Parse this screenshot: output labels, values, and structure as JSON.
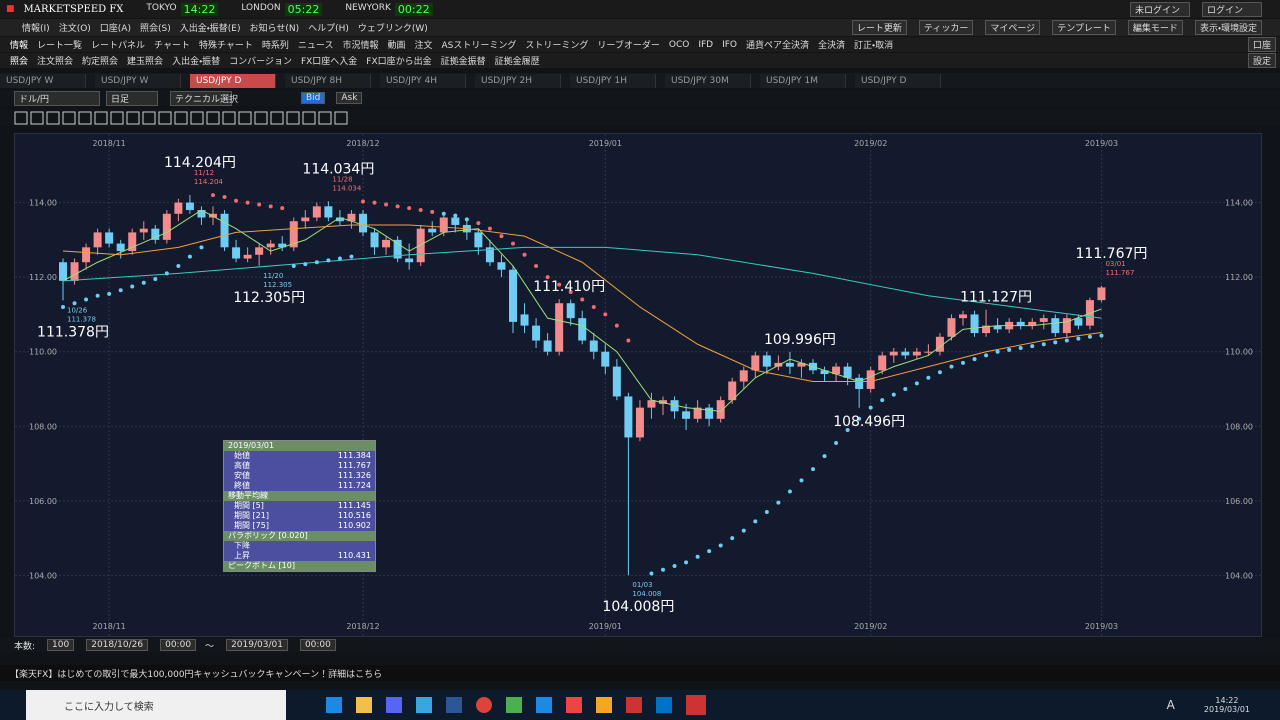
{
  "app": {
    "title": "MARKETSPEED FX",
    "clocks": [
      {
        "city": "TOKYO",
        "time": "14:22"
      },
      {
        "city": "LONDON",
        "time": "05:22"
      },
      {
        "city": "NEWYORK",
        "time": "00:22"
      }
    ],
    "login": [
      "未ログイン",
      "ログイン"
    ]
  },
  "menu": [
    "情報(I)",
    "注文(O)",
    "口座(A)",
    "照会(S)",
    "入出金・振替(E)",
    "お知らせ(N)",
    "ヘルプ(H)",
    "ウェブリンク(W)"
  ],
  "menu_right": [
    "レート更新",
    "ティッカー",
    "マイページ",
    "テンプレート",
    "編集モード",
    "表示・環境設定"
  ],
  "toolbar1": {
    "group": "情報",
    "items": [
      "レート一覧",
      "レートパネル",
      "チャート",
      "特殊チャート",
      "時系列",
      "ニュース",
      "市況情報",
      "動画",
      "注文",
      "ASストリーミング",
      "ストリーミング",
      "リーブオーダー",
      "OCO",
      "IFD",
      "IFO",
      "通貨ペア全決済",
      "全決済",
      "訂正・取消"
    ],
    "right": "口座"
  },
  "toolbar2": {
    "group": "照会",
    "items": [
      "注文照会",
      "約定照会",
      "建玉照会",
      "入出金・振替",
      "コンバージョン",
      "FX口座へ入金",
      "FX口座から出金",
      "証拠金振替",
      "証拠金履歴"
    ],
    "right": "設定"
  },
  "tabs": [
    "USD/JPY W",
    "USD/JPY W",
    "USD/JPY D",
    "USD/JPY 8H",
    "USD/JPY 4H",
    "USD/JPY 2H",
    "USD/JPY 1H",
    "USD/JPY 30M",
    "USD/JPY 1M",
    "USD/JPY D"
  ],
  "active_tab": 2,
  "chart_toolbar": {
    "pair": "ドル/円",
    "period": "日足",
    "technical": "テクニカル選択",
    "bid": "Bid",
    "ask": "Ask"
  },
  "chart_data": {
    "type": "candlestick",
    "xlim": [
      -4.16,
      104
    ],
    "ylim": [
      102.32,
      115.84
    ],
    "xticks": [
      {
        "value": 4,
        "label": "2018/11"
      },
      {
        "value": 26,
        "label": "2018/12"
      },
      {
        "value": 47,
        "label": "2019/01"
      },
      {
        "value": 70,
        "label": "2019/02"
      },
      {
        "value": 90,
        "label": "2019/03"
      }
    ],
    "yticks": [
      {
        "value": 104,
        "label": "104.00"
      },
      {
        "value": 106,
        "label": "106.00"
      },
      {
        "value": 108,
        "label": "108.00"
      },
      {
        "value": 110,
        "label": "110.00"
      },
      {
        "value": 112,
        "label": "112.00"
      },
      {
        "value": 114,
        "label": "114.00"
      }
    ],
    "grid": true,
    "up_color": "#f28b8b",
    "down_color": "#6fcdf3",
    "open": [
      112.4,
      111.9,
      112.4,
      112.8,
      113.2,
      112.9,
      112.7,
      113.2,
      113.3,
      113.0,
      113.7,
      114.0,
      113.8,
      113.6,
      113.7,
      112.8,
      112.5,
      112.6,
      112.8,
      112.9,
      112.8,
      113.5,
      113.6,
      113.9,
      113.6,
      113.5,
      113.7,
      113.2,
      112.8,
      113.0,
      112.5,
      112.4,
      113.3,
      113.2,
      113.6,
      113.4,
      113.2,
      112.8,
      112.4,
      112.2,
      111.0,
      110.7,
      110.3,
      110.0,
      111.3,
      110.9,
      110.3,
      110.0,
      109.6,
      108.8,
      107.7,
      108.5,
      108.6,
      108.7,
      108.4,
      108.2,
      108.5,
      108.2,
      108.7,
      109.2,
      109.5,
      109.9,
      109.6,
      109.7,
      109.6,
      109.7,
      109.5,
      109.4,
      109.6,
      109.3,
      109.0,
      109.5,
      109.9,
      110.0,
      109.9,
      110.0,
      110.0,
      110.4,
      110.9,
      111.0,
      110.5,
      110.7,
      110.6,
      110.8,
      110.7,
      110.8,
      110.9,
      110.5,
      110.9,
      110.7,
      111.384
    ],
    "high": [
      112.5,
      112.5,
      112.9,
      113.3,
      113.3,
      113.0,
      113.3,
      113.5,
      113.4,
      113.8,
      114.1,
      114.204,
      113.9,
      113.9,
      113.8,
      113.0,
      112.8,
      112.9,
      113.0,
      113.1,
      113.6,
      113.8,
      114.0,
      114.034,
      113.8,
      113.8,
      113.8,
      113.3,
      113.1,
      113.1,
      112.9,
      113.4,
      113.5,
      113.7,
      113.7,
      113.6,
      113.3,
      113.0,
      112.6,
      112.3,
      111.3,
      110.9,
      110.5,
      111.41,
      111.4,
      111.1,
      110.5,
      110.2,
      109.8,
      108.9,
      108.7,
      108.9,
      108.8,
      108.8,
      108.6,
      108.7,
      108.6,
      108.8,
      109.3,
      109.6,
      110.0,
      110.0,
      109.9,
      109.996,
      109.8,
      109.8,
      109.6,
      109.7,
      109.7,
      109.4,
      109.6,
      110.0,
      110.1,
      110.1,
      110.1,
      110.2,
      110.5,
      111.0,
      111.1,
      111.1,
      111.127,
      110.9,
      110.9,
      110.9,
      110.9,
      111.0,
      111.0,
      111.0,
      111.0,
      111.45,
      111.767
    ],
    "low": [
      111.378,
      111.8,
      112.2,
      112.6,
      112.8,
      112.5,
      112.6,
      113.0,
      112.9,
      112.9,
      113.5,
      113.7,
      113.4,
      113.4,
      112.7,
      112.4,
      112.4,
      112.305,
      112.6,
      112.7,
      112.7,
      113.3,
      113.5,
      113.5,
      113.4,
      113.3,
      113.1,
      112.6,
      112.6,
      112.4,
      112.2,
      112.3,
      113.1,
      113.1,
      113.2,
      113.0,
      112.6,
      112.3,
      112.0,
      110.5,
      110.5,
      110.1,
      109.9,
      109.9,
      110.7,
      110.2,
      109.8,
      109.4,
      108.7,
      104.008,
      107.6,
      108.2,
      108.3,
      108.2,
      107.9,
      108.1,
      108.0,
      108.1,
      108.6,
      109.0,
      109.3,
      109.4,
      109.5,
      109.4,
      109.3,
      109.4,
      109.2,
      109.2,
      109.1,
      108.496,
      108.9,
      109.4,
      109.7,
      109.8,
      109.8,
      109.9,
      109.9,
      110.3,
      110.7,
      110.4,
      110.4,
      110.5,
      110.5,
      110.6,
      110.6,
      110.6,
      110.4,
      110.4,
      110.6,
      110.6,
      111.326
    ],
    "close": [
      111.9,
      112.4,
      112.8,
      113.2,
      112.9,
      112.7,
      113.2,
      113.3,
      113.0,
      113.7,
      114.0,
      113.8,
      113.6,
      113.7,
      112.8,
      112.5,
      112.6,
      112.8,
      112.9,
      112.8,
      113.5,
      113.6,
      113.9,
      113.6,
      113.5,
      113.7,
      113.2,
      112.8,
      113.0,
      112.5,
      112.4,
      113.3,
      113.2,
      113.6,
      113.4,
      113.2,
      112.8,
      112.4,
      112.2,
      110.8,
      110.7,
      110.3,
      110.0,
      111.3,
      110.9,
      110.3,
      110.0,
      109.6,
      108.8,
      107.7,
      108.5,
      108.7,
      108.7,
      108.4,
      108.2,
      108.5,
      108.2,
      108.7,
      109.2,
      109.5,
      109.9,
      109.6,
      109.7,
      109.6,
      109.7,
      109.5,
      109.4,
      109.6,
      109.3,
      109.0,
      109.5,
      109.9,
      110.0,
      109.9,
      110.0,
      110.0,
      110.4,
      110.9,
      111.0,
      110.5,
      110.7,
      110.6,
      110.8,
      110.7,
      110.8,
      110.9,
      110.5,
      110.9,
      110.7,
      111.384,
      111.724
    ],
    "lines": [
      {
        "color": "#9be07a",
        "x": [
          0,
          3,
          6,
          9,
          12,
          15,
          18,
          21,
          24,
          27,
          30,
          33,
          36,
          39,
          42,
          45,
          48,
          51,
          54,
          57,
          60,
          63,
          66,
          69,
          72,
          75,
          78,
          81,
          84,
          87,
          90
        ],
        "values": [
          111.9,
          112.4,
          112.8,
          113.2,
          113.8,
          113.3,
          112.7,
          113.0,
          113.6,
          113.3,
          112.7,
          113.2,
          113.3,
          112.3,
          110.9,
          110.7,
          110.0,
          108.7,
          108.5,
          108.4,
          109.3,
          109.8,
          109.5,
          109.2,
          109.6,
          109.9,
          110.6,
          110.7,
          110.7,
          110.8,
          111.145
        ]
      },
      {
        "color": "#f0a040",
        "x": [
          0,
          5,
          10,
          15,
          20,
          25,
          30,
          35,
          40,
          45,
          50,
          55,
          60,
          65,
          70,
          75,
          80,
          85,
          90
        ],
        "values": [
          112.7,
          112.6,
          112.8,
          113.2,
          113.3,
          113.4,
          113.4,
          113.3,
          113.1,
          112.4,
          111.2,
          110.2,
          109.5,
          109.2,
          109.2,
          109.6,
          110.0,
          110.3,
          110.516
        ]
      },
      {
        "color": "#3cc8c0",
        "x": [
          0,
          10,
          20,
          30,
          40,
          47,
          55,
          65,
          75,
          85,
          90
        ],
        "values": [
          111.9,
          112.1,
          112.35,
          112.6,
          112.8,
          112.8,
          112.6,
          112.1,
          111.5,
          111.1,
          110.902
        ]
      }
    ],
    "sar": {
      "color_up": "#6fcdf3",
      "color_down": "#f26a6a",
      "values": [
        111.2,
        111.3,
        111.4,
        111.5,
        111.55,
        111.65,
        111.75,
        111.85,
        111.95,
        112.1,
        112.3,
        112.55,
        112.8,
        114.2,
        114.15,
        114.05,
        114.0,
        113.95,
        113.9,
        113.85,
        112.3,
        112.35,
        112.4,
        112.45,
        112.5,
        112.55,
        114.03,
        114.0,
        113.95,
        113.9,
        113.85,
        113.8,
        113.75,
        113.7,
        113.65,
        113.55,
        113.45,
        113.3,
        113.1,
        112.9,
        112.6,
        112.3,
        112.0,
        111.8,
        111.6,
        111.4,
        111.2,
        111.0,
        110.7,
        110.3,
        null,
        104.05,
        104.15,
        104.25,
        104.35,
        104.5,
        104.65,
        104.8,
        105.0,
        105.2,
        105.45,
        105.7,
        105.95,
        106.25,
        106.55,
        106.85,
        107.2,
        107.55,
        107.9,
        108.2,
        108.5,
        108.7,
        108.85,
        109.0,
        109.15,
        109.3,
        109.45,
        109.6,
        109.7,
        109.8,
        109.9,
        110.0,
        110.05,
        110.1,
        110.15,
        110.2,
        110.25,
        110.3,
        110.35,
        110.4,
        110.431
      ]
    },
    "annotations": [
      {
        "x": 0,
        "value": 111.378,
        "kind": "low",
        "date": "10/26",
        "label": "111.378円"
      },
      {
        "x": 11,
        "value": 114.204,
        "kind": "high",
        "date": "11/12",
        "label": "114.204円"
      },
      {
        "x": 17,
        "value": 112.305,
        "kind": "low",
        "date": "11/20",
        "label": "112.305円"
      },
      {
        "x": 23,
        "value": 114.034,
        "kind": "high",
        "date": "11/28",
        "label": "114.034円"
      },
      {
        "x": 43,
        "value": 111.41,
        "kind": "high",
        "label": "111.410円"
      },
      {
        "x": 49,
        "value": 104.008,
        "kind": "low",
        "date": "01/03",
        "label": "104.008円"
      },
      {
        "x": 63,
        "value": 109.996,
        "kind": "high",
        "label": "109.996円"
      },
      {
        "x": 69,
        "value": 108.496,
        "kind": "low",
        "label": "108.496円"
      },
      {
        "x": 80,
        "value": 111.127,
        "kind": "high",
        "label": "111.127円"
      },
      {
        "x": 90,
        "value": 111.767,
        "kind": "high",
        "date": "03/01",
        "label": "111.767円"
      }
    ]
  },
  "info_panel": {
    "date": "2019/03/01",
    "ohlc": [
      [
        "始値",
        "111.384"
      ],
      [
        "高値",
        "111.767"
      ],
      [
        "安値",
        "111.326"
      ],
      [
        "終値",
        "111.724"
      ]
    ],
    "ma_title": "移動平均線",
    "ma": [
      [
        "期間 [5]",
        "111.145"
      ],
      [
        "期間 [21]",
        "110.516"
      ],
      [
        "期間 [75]",
        "110.902"
      ]
    ],
    "sar_title": "パラボリック [0.020]",
    "sar": [
      [
        "下降"
      ],
      [
        "上昇",
        "110.431"
      ]
    ],
    "peak_title": "ピークボトム [10]"
  },
  "bottom_bar": {
    "count_label": "本数:",
    "count": "100",
    "from_date": "2018/10/26",
    "from_time": "00:00",
    "sep": "～",
    "to_date": "2019/03/01",
    "to_time": "00:00"
  },
  "banner": "【楽天FX】はじめての取引で最大100,000円キャッシュバックキャンペーン！詳細はこちら",
  "taskbar": {
    "search": "ここに入力して検索",
    "ime": "A",
    "time": "14:22",
    "date": "2019/03/01"
  }
}
